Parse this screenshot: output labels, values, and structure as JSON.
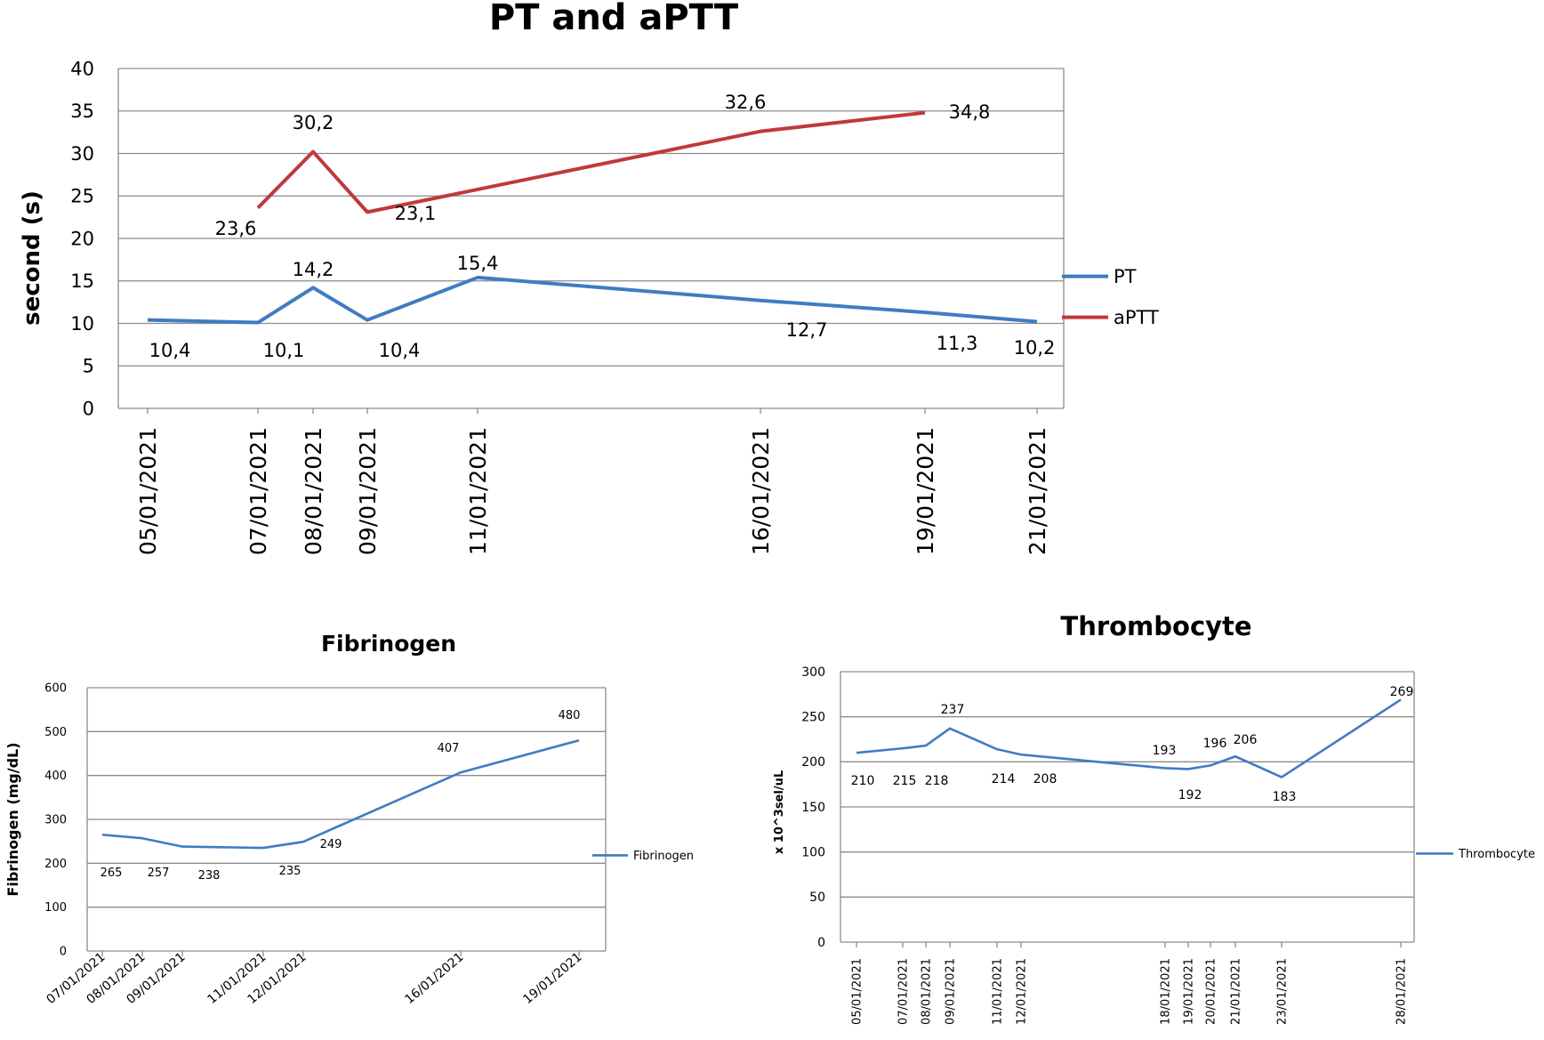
{
  "chart_data": [
    {
      "type": "line",
      "title": "PT and aPTT",
      "ylabel": "second  (s)",
      "xlabel": "",
      "ylim": [
        0,
        40
      ],
      "yticks": [
        0,
        5,
        10,
        15,
        20,
        25,
        30,
        35,
        40
      ],
      "grid": true,
      "legend": "right",
      "x": [
        "05/01/2021",
        "07/01/2021",
        "08/01/2021",
        "09/01/2021",
        "11/01/2021",
        "16/01/2021",
        "19/01/2021",
        "21/01/2021"
      ],
      "series": [
        {
          "name": "PT",
          "color": "#3f7cc2",
          "x": [
            "05/01/2021",
            "07/01/2021",
            "08/01/2021",
            "09/01/2021",
            "11/01/2021",
            "16/01/2021",
            "19/01/2021",
            "21/01/2021"
          ],
          "values": [
            10.4,
            10.1,
            14.2,
            10.4,
            15.4,
            12.7,
            11.3,
            10.2
          ],
          "labels": [
            "10,4",
            "10,1",
            "14,2",
            "10,4",
            "15,4",
            "12,7",
            "11,3",
            "10,2"
          ]
        },
        {
          "name": "aPTT",
          "color": "#c0393b",
          "x": [
            "07/01/2021",
            "08/01/2021",
            "09/01/2021",
            "16/01/2021",
            "19/01/2021"
          ],
          "values": [
            23.6,
            30.2,
            23.1,
            32.6,
            34.8
          ],
          "labels": [
            "23,6",
            "30,2",
            "23,1",
            "32,6",
            "34,8"
          ]
        }
      ]
    },
    {
      "type": "line",
      "title": "Fibrinogen",
      "ylabel": "Fibrinogen (mg/dL)",
      "xlabel": "",
      "ylim": [
        0,
        600
      ],
      "yticks": [
        0,
        100,
        200,
        300,
        400,
        500,
        600
      ],
      "grid": true,
      "legend": "right",
      "x": [
        "07/01/2021",
        "08/01/2021",
        "09/01/2021",
        "11/01/2021",
        "12/01/2021",
        "16/01/2021",
        "19/01/2021"
      ],
      "series": [
        {
          "name": "Fibrinogen",
          "color": "#3f7cc2",
          "x": [
            "07/01/2021",
            "08/01/2021",
            "09/01/2021",
            "11/01/2021",
            "12/01/2021",
            "16/01/2021",
            "19/01/2021"
          ],
          "values": [
            265,
            257,
            238,
            235,
            249,
            407,
            480
          ],
          "labels": [
            "265",
            "257",
            "238",
            "235",
            "249",
            "407",
            "480"
          ]
        }
      ]
    },
    {
      "type": "line",
      "title": "Thrombocyte",
      "ylabel": "x 10^3sel/uL",
      "xlabel": "",
      "ylim": [
        0,
        300
      ],
      "yticks": [
        0,
        50,
        100,
        150,
        200,
        250,
        300
      ],
      "grid": true,
      "legend": "right",
      "x": [
        "05/01/2021",
        "07/01/2021",
        "08/01/2021",
        "09/01/2021",
        "11/01/2021",
        "12/01/2021",
        "18/01/2021",
        "19/01/2021",
        "20/01/2021",
        "21/01/2021",
        "23/01/2021",
        "28/01/2021"
      ],
      "series": [
        {
          "name": "Thrombocyte",
          "color": "#3f7cc2",
          "x": [
            "05/01/2021",
            "07/01/2021",
            "08/01/2021",
            "09/01/2021",
            "11/01/2021",
            "12/01/2021",
            "18/01/2021",
            "19/01/2021",
            "20/01/2021",
            "21/01/2021",
            "23/01/2021",
            "28/01/2021"
          ],
          "values": [
            210,
            215,
            218,
            237,
            214,
            208,
            193,
            192,
            196,
            206,
            183,
            269
          ],
          "labels": [
            "210",
            "215",
            "218",
            "237",
            "214",
            "208",
            "193",
            "192",
            "196",
            "206",
            "183",
            "269"
          ]
        }
      ]
    }
  ]
}
